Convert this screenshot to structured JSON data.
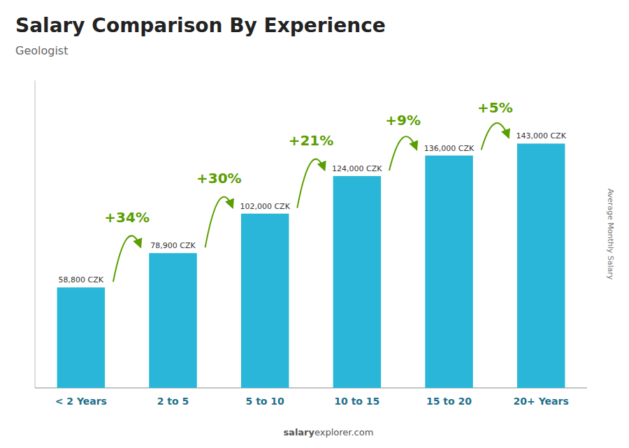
{
  "chart_data": {
    "type": "bar",
    "title": "Salary Comparison By Experience",
    "subtitle": "Geologist",
    "ylabel": "Average Monthly Salary",
    "watermark": [
      "salary",
      "explorer.com"
    ],
    "categories": [
      "< 2 Years",
      "2 to 5",
      "5 to 10",
      "10 to 15",
      "15 to 20",
      "20+ Years"
    ],
    "values": [
      58800,
      78900,
      102000,
      124000,
      136000,
      143000
    ],
    "value_labels": [
      "58,800 CZK",
      "78,900 CZK",
      "102,000 CZK",
      "124,000 CZK",
      "136,000 CZK",
      "143,000 CZK"
    ],
    "data_labels": true,
    "annotations": [
      "+34%",
      "+30%",
      "+21%",
      "+9%",
      "+5%"
    ],
    "color": "#29b6d8",
    "ylim": [
      0,
      180000
    ],
    "tick_labels": "x",
    "grid": false
  }
}
